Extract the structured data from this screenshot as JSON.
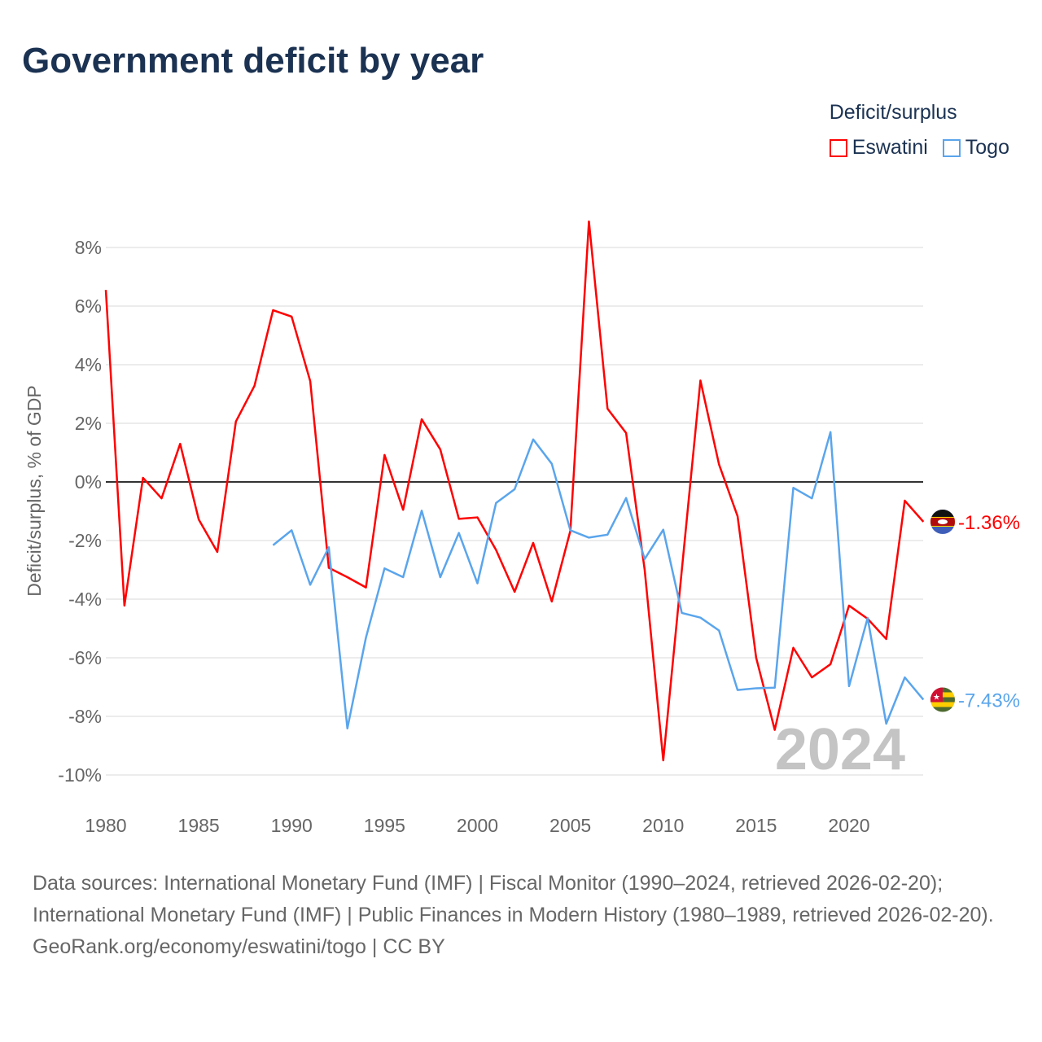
{
  "title": "Government deficit by year",
  "legend": {
    "title": "Deficit/surplus",
    "items": [
      {
        "name": "Eswatini",
        "color": "#ff0000"
      },
      {
        "name": "Togo",
        "color": "#5aa5ec"
      }
    ]
  },
  "watermark_year": "2024",
  "footer": {
    "sources": "Data sources: International Monetary Fund (IMF) | Fiscal Monitor (1990–2024, retrieved 2026-02-20); International Monetary Fund (IMF) | Public Finances in Modern History (1980–1989, retrieved 2026-02-20).",
    "credit": "GeoRank.org/economy/eswatini/togo | CC BY"
  },
  "chart_data": {
    "type": "line",
    "title": "Government deficit by year",
    "xlabel": "",
    "ylabel": "Deficit/surplus, % of GDP",
    "xlim": [
      1980,
      2024
    ],
    "ylim": [
      -10,
      8
    ],
    "x_ticks": [
      1980,
      1985,
      1990,
      1995,
      2000,
      2005,
      2010,
      2015,
      2020
    ],
    "y_ticks": [
      8,
      6,
      4,
      2,
      0,
      -2,
      -4,
      -6,
      -8,
      -10
    ],
    "y_tick_labels": [
      "8%",
      "6%",
      "4%",
      "2%",
      "0%",
      "-2%",
      "-4%",
      "-6%",
      "-8%",
      "-10%"
    ],
    "series": [
      {
        "name": "Eswatini",
        "color": "#ff0000",
        "end_label": "-1.36%",
        "start_year": 1980,
        "values": [
          6.55,
          -4.22,
          0.14,
          -0.56,
          1.3,
          -1.28,
          -2.39,
          2.06,
          3.28,
          5.86,
          5.64,
          3.44,
          -2.93,
          -3.25,
          -3.6,
          0.92,
          -0.95,
          2.14,
          1.11,
          -1.26,
          -1.21,
          -2.32,
          -3.75,
          -2.08,
          -4.08,
          -1.67,
          8.89,
          2.5,
          1.67,
          -3.0,
          -9.5,
          -3.0,
          3.46,
          0.6,
          -1.17,
          -6.0,
          -8.46,
          -5.66,
          -6.67,
          -6.22,
          -4.22,
          -4.67,
          -5.36,
          -0.64,
          -1.36
        ]
      },
      {
        "name": "Togo",
        "color": "#5aa5ec",
        "end_label": "-7.43%",
        "start_year": 1989,
        "values": [
          -2.16,
          -1.65,
          -3.51,
          -2.23,
          -8.41,
          -5.31,
          -2.95,
          -3.25,
          -0.98,
          -3.25,
          -1.74,
          -3.46,
          -0.72,
          -0.25,
          1.45,
          0.62,
          -1.65,
          -1.9,
          -1.8,
          -0.55,
          -2.63,
          -1.63,
          -4.47,
          -4.63,
          -5.07,
          -7.1,
          -7.04,
          -7.02,
          -0.2,
          -0.56,
          1.7,
          -6.97,
          -4.64,
          -8.25,
          -6.67,
          -7.43
        ]
      }
    ]
  }
}
